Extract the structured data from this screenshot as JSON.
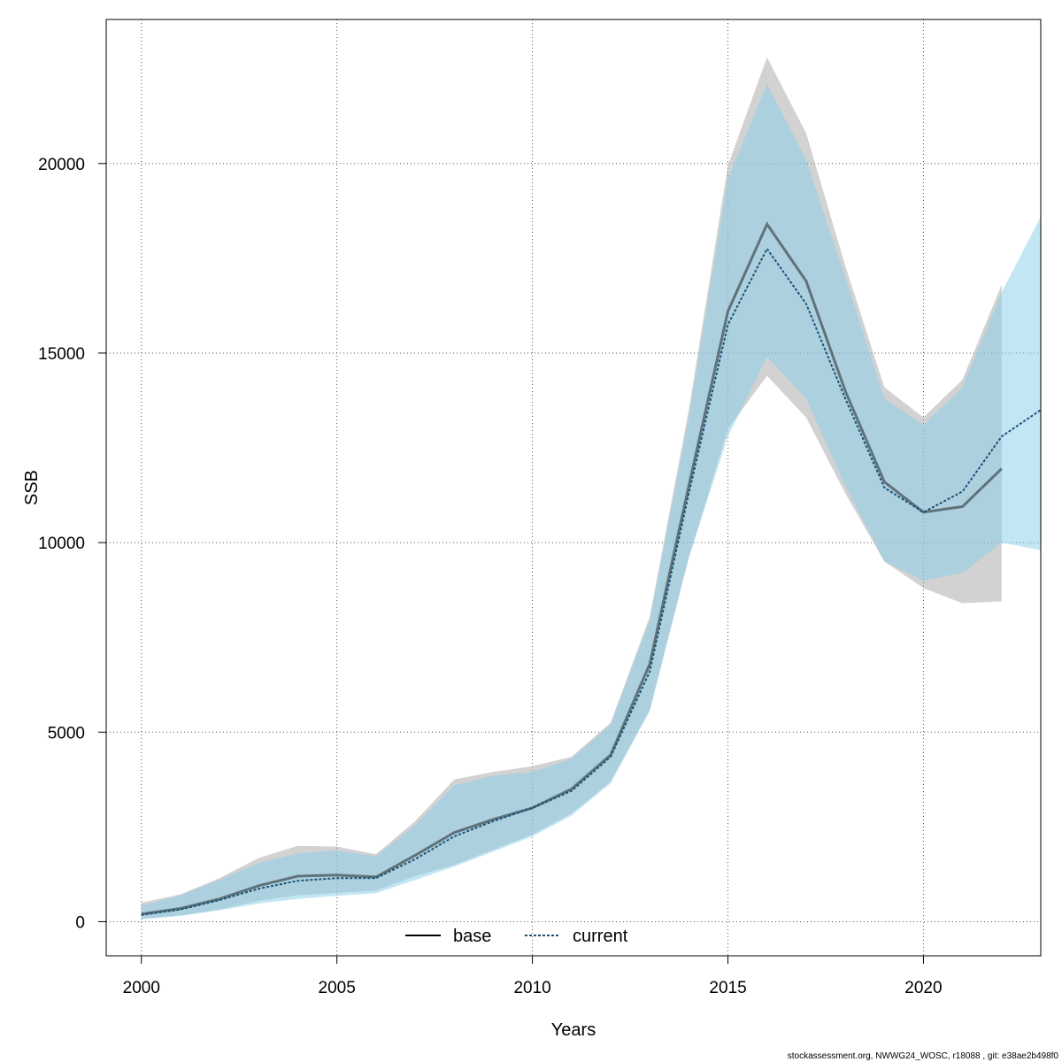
{
  "chart_data": {
    "type": "line",
    "title": "",
    "xlabel": "Years",
    "ylabel": "SSB",
    "xlim": [
      1999.1,
      2023
    ],
    "ylim": [
      -900,
      23800
    ],
    "x_ticks": [
      2000,
      2005,
      2010,
      2015,
      2020
    ],
    "y_ticks": [
      0,
      5000,
      10000,
      15000,
      20000
    ],
    "grid": true,
    "legend_position": "bottom",
    "series": [
      {
        "name": "base",
        "line_style": "solid",
        "line_color": "#000000",
        "band_color": "#a6a6a6",
        "x": [
          2000,
          2001,
          2002,
          2003,
          2004,
          2005,
          2006,
          2007,
          2008,
          2009,
          2010,
          2011,
          2012,
          2013,
          2014,
          2015,
          2016,
          2017,
          2018,
          2019,
          2020,
          2021,
          2022
        ],
        "y": [
          200,
          350,
          600,
          950,
          1200,
          1230,
          1180,
          1750,
          2350,
          2700,
          3000,
          3500,
          4400,
          6800,
          11500,
          16100,
          18400,
          16900,
          14000,
          11600,
          10800,
          10950,
          11950
        ],
        "lower": [
          80,
          170,
          320,
          550,
          700,
          760,
          820,
          1200,
          1500,
          1900,
          2300,
          2850,
          3700,
          5600,
          9600,
          13000,
          14400,
          13300,
          11300,
          9500,
          8800,
          8400,
          8450
        ],
        "upper": [
          500,
          720,
          1150,
          1680,
          2000,
          1980,
          1780,
          2650,
          3750,
          3950,
          4100,
          4350,
          5250,
          8050,
          13500,
          19950,
          22800,
          20800,
          17300,
          14100,
          13300,
          14300,
          16800
        ]
      },
      {
        "name": "current",
        "line_style": "dashed",
        "line_color": "#1a5276",
        "band_color": "#87ceeb",
        "x": [
          2000,
          2001,
          2002,
          2003,
          2004,
          2005,
          2006,
          2007,
          2008,
          2009,
          2010,
          2011,
          2012,
          2013,
          2014,
          2015,
          2016,
          2017,
          2018,
          2019,
          2020,
          2021,
          2022,
          2023
        ],
        "y": [
          180,
          320,
          570,
          870,
          1080,
          1150,
          1150,
          1650,
          2250,
          2650,
          3000,
          3450,
          4350,
          6600,
          11300,
          15750,
          17750,
          16300,
          13800,
          11450,
          10800,
          11350,
          12800,
          13500
        ],
        "lower": [
          60,
          150,
          300,
          480,
          600,
          680,
          750,
          1100,
          1450,
          1850,
          2250,
          2800,
          3650,
          5550,
          9600,
          12800,
          14900,
          13800,
          11500,
          9500,
          9000,
          9200,
          10000,
          9800
        ],
        "upper": [
          420,
          700,
          1100,
          1550,
          1800,
          1880,
          1720,
          2550,
          3600,
          3850,
          3950,
          4300,
          5200,
          7950,
          13300,
          19600,
          22100,
          20100,
          17000,
          13800,
          13100,
          14100,
          16600,
          18600
        ]
      }
    ]
  },
  "legend": {
    "base_label": "base",
    "current_label": "current"
  },
  "footer": {
    "note": "stockassessment.org, NWWG24_WOSC, r18088 , git: e38ae2b498f0"
  }
}
